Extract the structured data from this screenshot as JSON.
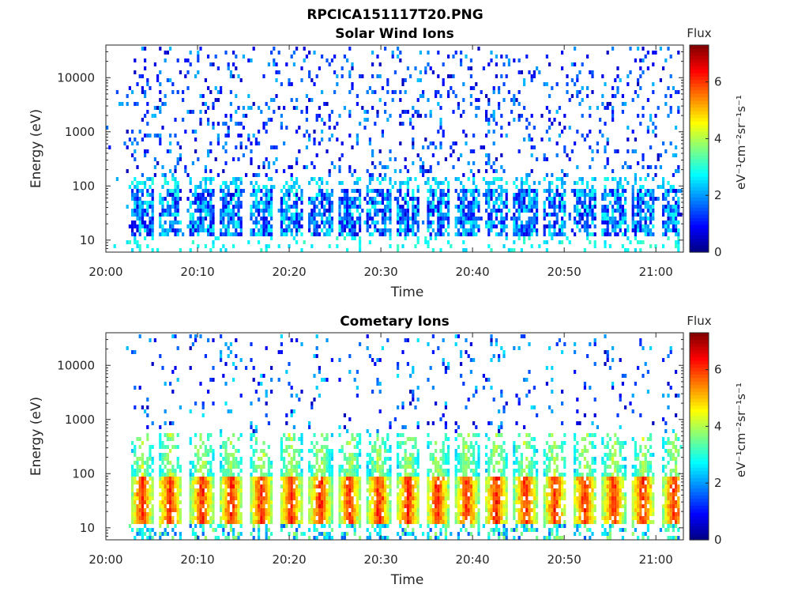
{
  "figure_title": "RPCICA151117T20.PNG",
  "chart_data": [
    {
      "type": "heatmap",
      "title": "Solar Wind Ions",
      "xlabel": "Time",
      "ylabel": "Energy (eV)",
      "y_scale": "log",
      "x_range": [
        "20:00",
        "21:03"
      ],
      "y_range": [
        6,
        40000
      ],
      "x_ticks": [
        "20:00",
        "20:10",
        "20:20",
        "20:30",
        "20:40",
        "20:50",
        "21:00"
      ],
      "y_ticks": [
        "10",
        "100",
        "1000",
        "10000"
      ],
      "colorbar": {
        "label": "Flux",
        "unit": "eV⁻¹cm⁻²sr⁻¹s⁻¹",
        "range": [
          0,
          7.3
        ],
        "ticks": [
          "0",
          "2",
          "4",
          "6"
        ],
        "colormap": "jet"
      },
      "burst_times_min": [
        4,
        7,
        10.5,
        13.7,
        17,
        20.2,
        23.4,
        26.6,
        29.8,
        33,
        36.2,
        39.4,
        42.6,
        45.8,
        49,
        52.2,
        55.4,
        58.6,
        62
      ],
      "pattern": "sparse low-flux blue counts from 100 eV to 40 keV; narrow vertical bursts of 1–3 flux between 10 and 300 eV every ~3.2 min"
    },
    {
      "type": "heatmap",
      "title": "Cometary Ions",
      "xlabel": "Time",
      "ylabel": "Energy (eV)",
      "y_scale": "log",
      "x_range": [
        "20:00",
        "21:03"
      ],
      "y_range": [
        6,
        40000
      ],
      "x_ticks": [
        "20:00",
        "20:10",
        "20:20",
        "20:30",
        "20:40",
        "20:50",
        "21:00"
      ],
      "y_ticks": [
        "10",
        "100",
        "1000",
        "10000"
      ],
      "colorbar": {
        "label": "Flux",
        "unit": "eV⁻¹cm⁻²sr⁻¹s⁻¹",
        "range": [
          0,
          7.3
        ],
        "ticks": [
          "0",
          "2",
          "4",
          "6"
        ],
        "colormap": "jet"
      },
      "burst_times_min": [
        4,
        7,
        10.5,
        13.7,
        17,
        20.2,
        23.4,
        26.6,
        29.8,
        33,
        36.2,
        39.4,
        42.6,
        45.8,
        49,
        52.2,
        55.4,
        58.6,
        62
      ],
      "pattern": "periodic bursts peaking ~5–6.5 flux at 20–60 eV, extending to ~500 eV, sparse counts up to 30 keV"
    }
  ]
}
